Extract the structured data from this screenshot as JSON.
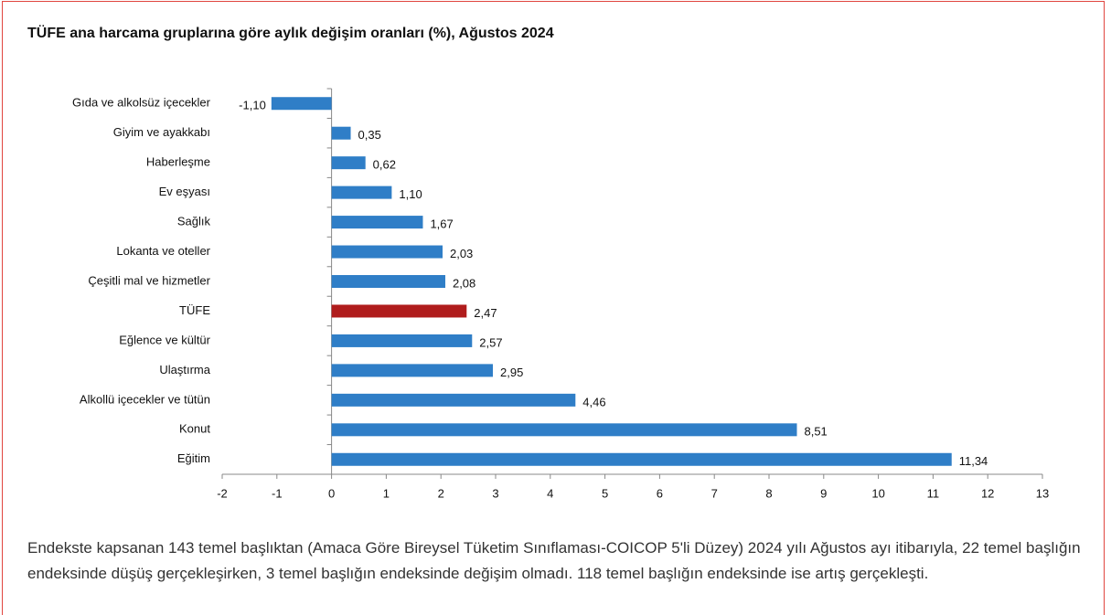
{
  "chart_data": {
    "type": "barh",
    "title": "TÜFE ana harcama gruplarına göre aylık değişim oranları (%), Ağustos 2024",
    "categories": [
      "Gıda ve alkolsüz içecekler",
      "Giyim ve ayakkabı",
      "Haberleşme",
      "Ev eşyası",
      "Sağlık",
      "Lokanta ve oteller",
      "Çeşitli mal ve hizmetler",
      "TÜFE",
      "Eğlence ve kültür",
      "Ulaştırma",
      "Alkollü içecekler ve tütün",
      "Konut",
      "Eğitim"
    ],
    "values": [
      -1.1,
      0.35,
      0.62,
      1.1,
      1.67,
      2.03,
      2.08,
      2.47,
      2.57,
      2.95,
      4.46,
      8.51,
      11.34
    ],
    "value_labels": [
      "-1,10",
      "0,35",
      "0,62",
      "1,10",
      "1,67",
      "2,03",
      "2,08",
      "2,47",
      "2,57",
      "2,95",
      "4,46",
      "8,51",
      "11,34"
    ],
    "colors": [
      "#2f7ec7",
      "#2f7ec7",
      "#2f7ec7",
      "#2f7ec7",
      "#2f7ec7",
      "#2f7ec7",
      "#2f7ec7",
      "#b01c1c",
      "#2f7ec7",
      "#2f7ec7",
      "#2f7ec7",
      "#2f7ec7",
      "#2f7ec7"
    ],
    "xlim": [
      -2,
      13
    ],
    "xticks": [
      -2,
      -1,
      0,
      1,
      2,
      3,
      4,
      5,
      6,
      7,
      8,
      9,
      10,
      11,
      12,
      13
    ],
    "grid": false
  },
  "description": "Endekste kapsanan 143 temel başlıktan (Amaca Göre Bireysel Tüketim Sınıflaması-COICOP 5'li Düzey) 2024 yılı Ağustos ayı itibarıyla, 22 temel başlığın endeksinde düşüş gerçekleşirken, 3 temel başlığın endeksinde değişim olmadı. 118 temel başlığın endeksinde ise artış gerçekleşti."
}
